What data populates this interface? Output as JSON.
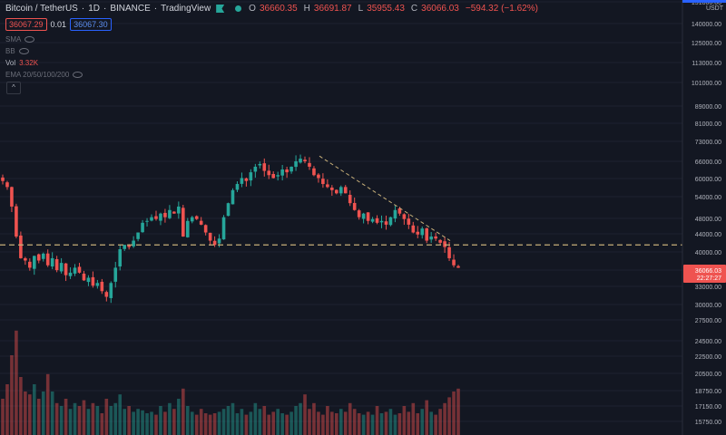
{
  "header": {
    "symbol": "Bitcoin / TetherUS",
    "interval": "1D",
    "exchange": "BINANCE",
    "source": "TradingView",
    "ohlc": [
      {
        "k": "O",
        "v": "36660.35"
      },
      {
        "k": "H",
        "v": "36691.87"
      },
      {
        "k": "L",
        "v": "35955.43"
      },
      {
        "k": "C",
        "v": "36066.03"
      }
    ],
    "change": "−594.32 (−1.62%)"
  },
  "trade": {
    "sell": "36067.29",
    "spread": "0.01",
    "buy": "36067.30"
  },
  "indicators": [
    {
      "name": "SMA",
      "value": ""
    },
    {
      "name": "BB",
      "value": ""
    },
    {
      "name": "Vol",
      "value": "3.32K"
    },
    {
      "name": "EMA 20/50/100/200",
      "value": ""
    }
  ],
  "colors": {
    "up": "#26a69a",
    "down": "#ef5350",
    "background": "#131722",
    "level": "#c8b07a"
  },
  "chart_data": {
    "type": "candlestick",
    "yaxis": {
      "currency": "USDT",
      "scale": "log",
      "ticks": [
        "151000.00",
        "140000.00",
        "125000.00",
        "113000.00",
        "101000.00",
        "89000.00",
        "81000.00",
        "73000.00",
        "66000.00",
        "60000.00",
        "54000.00",
        "48000.00",
        "44000.00",
        "40000.00",
        "36000.00",
        "33000.00",
        "30000.00",
        "27500.00",
        "24500.00",
        "22500.00",
        "20500.00",
        "18750.00",
        "17150.00",
        "15750.00"
      ],
      "current_price": "36066.03",
      "countdown": "22:27:27"
    },
    "horizontal_level": 41000,
    "trendline": [
      [
        0.44,
        68000
      ],
      [
        0.62,
        42000
      ]
    ],
    "price_series": [
      59000,
      57000,
      51000,
      43000,
      38000,
      37500,
      36000,
      38500,
      37500,
      39000,
      36500,
      38000,
      35500,
      37000,
      34500,
      35000,
      36000,
      35000,
      33500,
      34000,
      32500,
      33000,
      31500,
      30500,
      33000,
      36000,
      40000,
      41000,
      40500,
      42000,
      44000,
      46500,
      47000,
      48000,
      47500,
      49000,
      48000,
      50000,
      49000,
      51000,
      43000,
      47000,
      48000,
      47500,
      46000,
      44000,
      42000,
      41000,
      42500,
      48000,
      52000,
      56000,
      58000,
      60000,
      59000,
      62000,
      64000,
      65000,
      62500,
      61000,
      60000,
      61000,
      63000,
      62000,
      64000,
      66000,
      67000,
      66000,
      64000,
      61000,
      60000,
      58000,
      57000,
      56000,
      55000,
      57000,
      55000,
      52000,
      50000,
      48000,
      49000,
      47000,
      47500,
      46500,
      47000,
      46000,
      48000,
      50000,
      49000,
      47500,
      46000,
      44000,
      43500,
      45000,
      42000,
      43000,
      42500,
      41500,
      40500,
      38000,
      36500,
      36000
    ],
    "volume_series": [
      0.25,
      0.35,
      0.55,
      0.72,
      0.4,
      0.3,
      0.28,
      0.35,
      0.25,
      0.3,
      0.42,
      0.3,
      0.22,
      0.2,
      0.25,
      0.18,
      0.22,
      0.2,
      0.24,
      0.18,
      0.22,
      0.2,
      0.15,
      0.25,
      0.2,
      0.22,
      0.28,
      0.18,
      0.2,
      0.16,
      0.18,
      0.17,
      0.15,
      0.16,
      0.14,
      0.2,
      0.16,
      0.22,
      0.18,
      0.25,
      0.32,
      0.2,
      0.16,
      0.14,
      0.18,
      0.15,
      0.14,
      0.15,
      0.16,
      0.18,
      0.2,
      0.22,
      0.15,
      0.18,
      0.14,
      0.16,
      0.22,
      0.18,
      0.2,
      0.14,
      0.16,
      0.18,
      0.15,
      0.14,
      0.16,
      0.2,
      0.22,
      0.28,
      0.18,
      0.22,
      0.16,
      0.14,
      0.2,
      0.16,
      0.15,
      0.18,
      0.16,
      0.22,
      0.18,
      0.15,
      0.14,
      0.16,
      0.14,
      0.2,
      0.15,
      0.16,
      0.18,
      0.14,
      0.15,
      0.2,
      0.16,
      0.22,
      0.15,
      0.18,
      0.24,
      0.16,
      0.14,
      0.18,
      0.22,
      0.26,
      0.3,
      0.32
    ]
  }
}
